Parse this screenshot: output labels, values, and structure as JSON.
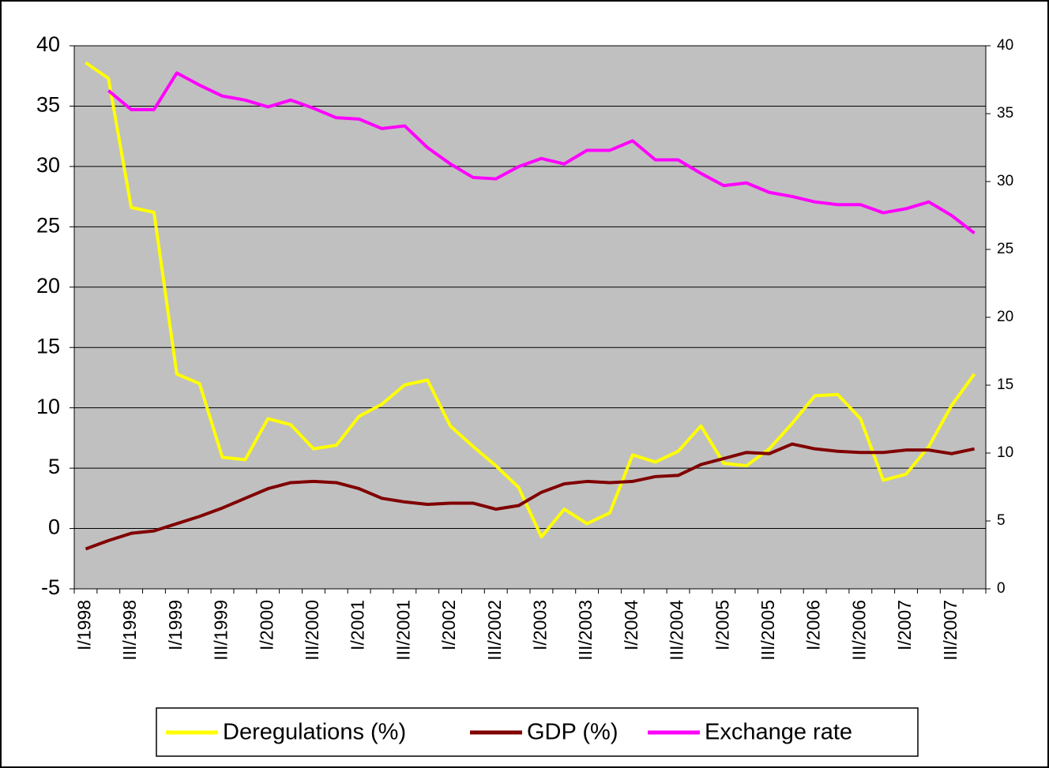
{
  "chart_data": {
    "type": "line",
    "categories": [
      "I/1998",
      null,
      "III/1998",
      null,
      "I/1999",
      null,
      "III/1999",
      null,
      "I/2000",
      null,
      "III/2000",
      null,
      "I/2001",
      null,
      "III/2001",
      null,
      "I/2002",
      null,
      "III/2002",
      null,
      "I/2003",
      null,
      "III/2003",
      null,
      "I/2004",
      null,
      "III/2004",
      null,
      "I/2005",
      null,
      "III/2005",
      null,
      "I/2006",
      null,
      "III/2006",
      null,
      "I/2007",
      null,
      "III/2007",
      null
    ],
    "series": [
      {
        "name": "Deregulations (%)",
        "color": "#ffff00",
        "values": [
          38.6,
          37.3,
          26.6,
          26.2,
          12.8,
          12.0,
          5.9,
          5.7,
          9.1,
          8.6,
          6.6,
          6.9,
          9.3,
          10.3,
          11.9,
          12.3,
          8.5,
          6.8,
          5.2,
          3.4,
          -0.7,
          1.6,
          0.4,
          1.3,
          6.1,
          5.5,
          6.4,
          8.5,
          5.4,
          5.2,
          6.6,
          8.7,
          11.0,
          11.1,
          9.1,
          4.0,
          4.5,
          6.8,
          10.2,
          12.8
        ]
      },
      {
        "name": "GDP (%)",
        "color": "#800000",
        "values": [
          -1.7,
          -1.0,
          -0.4,
          -0.2,
          0.4,
          1.0,
          1.7,
          2.5,
          3.3,
          3.8,
          3.9,
          3.8,
          3.3,
          2.5,
          2.2,
          2.0,
          2.1,
          2.1,
          1.6,
          1.9,
          3.0,
          3.7,
          3.9,
          3.8,
          3.9,
          4.3,
          4.4,
          5.3,
          5.8,
          6.3,
          6.2,
          7.0,
          6.6,
          6.4,
          6.3,
          6.3,
          6.5,
          6.5,
          6.2,
          6.6
        ]
      },
      {
        "name": "Exchange rate",
        "color": "#ff00ff",
        "axis": "y2",
        "values": [
          null,
          36.7,
          35.3,
          35.3,
          38.0,
          37.1,
          36.3,
          36.0,
          35.5,
          36.0,
          35.4,
          34.7,
          34.6,
          33.9,
          34.1,
          32.5,
          31.3,
          30.3,
          30.2,
          31.1,
          31.7,
          31.3,
          32.3,
          32.3,
          33.0,
          31.6,
          31.6,
          30.6,
          29.7,
          29.9,
          29.2,
          28.9,
          28.5,
          28.3,
          28.3,
          27.7,
          28.0,
          28.5,
          27.5,
          26.2
        ]
      }
    ],
    "ylim": [
      -5,
      40
    ],
    "yticks": [
      -5,
      0,
      5,
      10,
      15,
      20,
      25,
      30,
      35,
      40
    ],
    "y2lim": [
      0,
      40
    ],
    "y2ticks": [
      0,
      5,
      10,
      15,
      20,
      25,
      30,
      35,
      40
    ],
    "grid": true,
    "legend": "bottom"
  }
}
